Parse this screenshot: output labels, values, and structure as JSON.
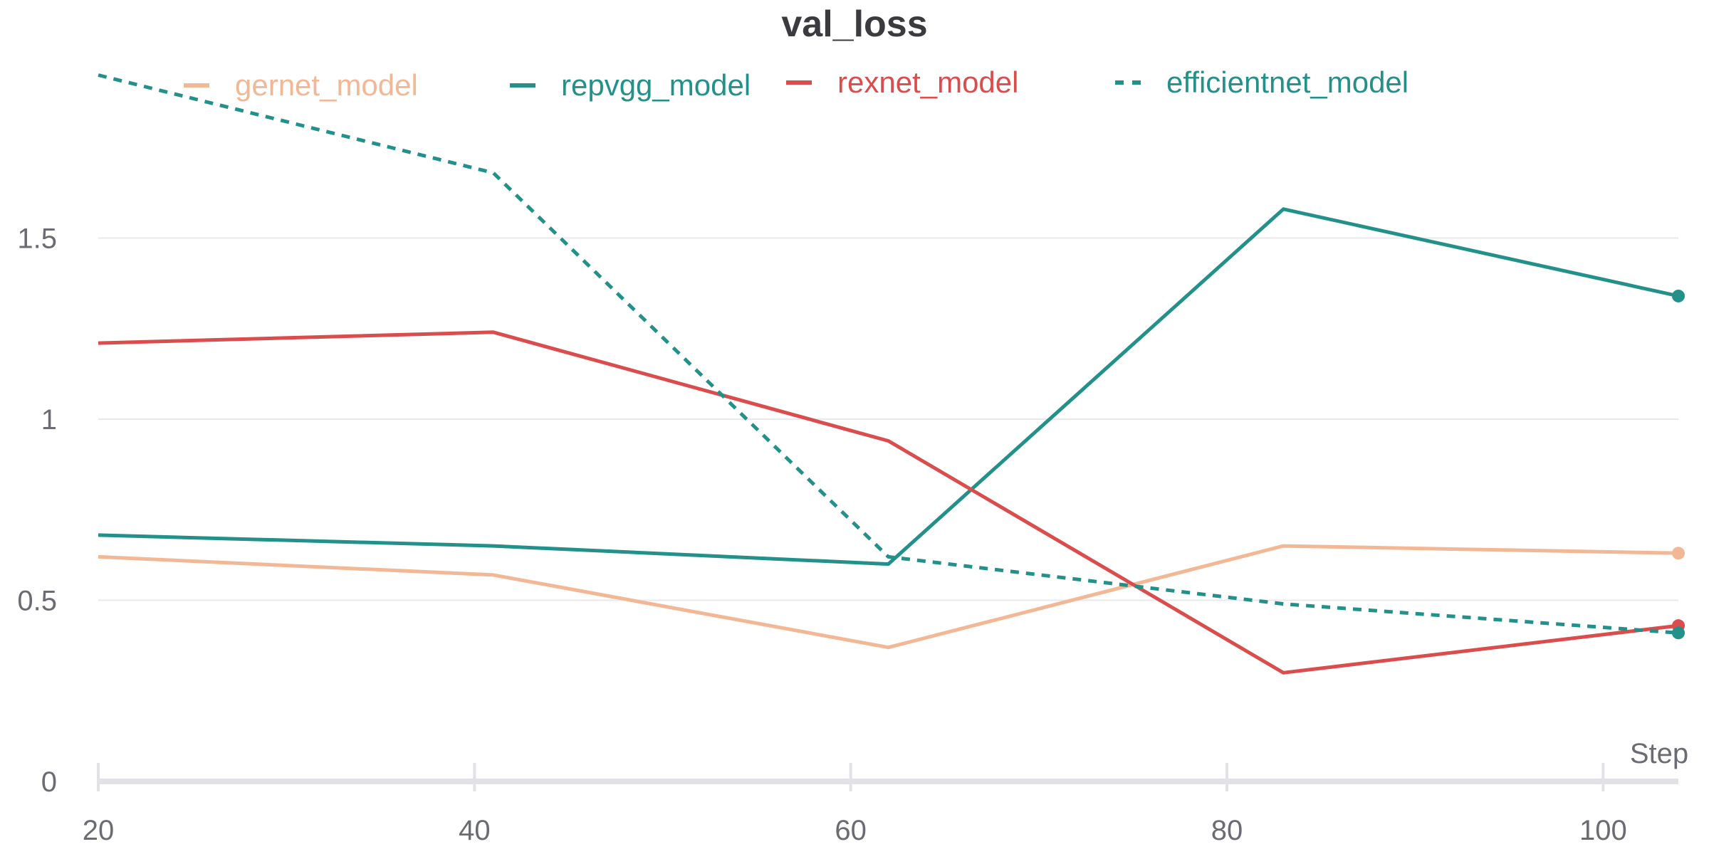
{
  "chart_data": {
    "type": "line",
    "title": "val_loss",
    "xlabel": "Step",
    "ylabel": "",
    "xlim": [
      20,
      104
    ],
    "ylim": [
      0,
      2.0
    ],
    "grid": true,
    "legend_position": "top",
    "x_ticks": [
      "20",
      "40",
      "60",
      "80",
      "100"
    ],
    "y_ticks": [
      "0",
      "0.5",
      "1",
      "1.5"
    ],
    "x": [
      20,
      41,
      62,
      83,
      104
    ],
    "series": [
      {
        "name": "gernet_model",
        "color": "#f2b896",
        "dashed": false,
        "values": [
          0.62,
          0.57,
          0.37,
          0.65,
          0.63
        ]
      },
      {
        "name": "repvgg_model",
        "color": "#23918a",
        "dashed": false,
        "values": [
          0.68,
          0.65,
          0.6,
          1.58,
          1.34
        ]
      },
      {
        "name": "rexnet_model",
        "color": "#db4c4c",
        "dashed": false,
        "values": [
          1.21,
          1.24,
          0.94,
          0.3,
          0.43
        ]
      },
      {
        "name": "efficientnet_model",
        "color": "#23918a",
        "dashed": true,
        "values": [
          1.95,
          1.68,
          0.62,
          0.49,
          0.41
        ]
      }
    ]
  }
}
